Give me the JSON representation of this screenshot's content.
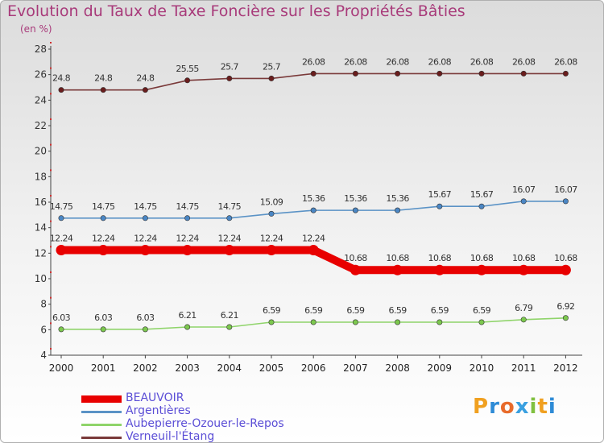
{
  "title": "Evolution du Taux de Taxe Foncière sur les Propriétés Bâties",
  "subtitle": "(en %)",
  "logo": {
    "text": "Proxiti",
    "colors": [
      "#f0a020",
      "#2e8bd6",
      "#e86b2b",
      "#3aa0e0",
      "#80c040",
      "#f0a020",
      "#2e8bd6"
    ]
  },
  "chart_data": {
    "type": "line",
    "title": "Evolution du Taux de Taxe Foncière sur les Propriétés Bâties",
    "ylabel": "(en %)",
    "xlabel": "",
    "ylim": [
      4,
      28
    ],
    "yticks": [
      4,
      6,
      8,
      10,
      12,
      14,
      16,
      18,
      20,
      22,
      24,
      26,
      28
    ],
    "grid": false,
    "legend": "bottom-left",
    "x": [
      "2000",
      "2001",
      "2002",
      "2003",
      "2004",
      "2005",
      "2006",
      "2007",
      "2008",
      "2009",
      "2010",
      "2011",
      "2012"
    ],
    "series": [
      {
        "name": "BEAUVOIR",
        "color": "#e80000",
        "bold": true,
        "values": [
          12.24,
          12.24,
          12.24,
          12.24,
          12.24,
          12.24,
          12.24,
          10.68,
          10.68,
          10.68,
          10.68,
          10.68,
          10.68
        ],
        "labels": [
          "12.24",
          "12.24",
          "12.24",
          "12.24",
          "12.24",
          "12.24",
          "12.24",
          "10.68",
          "10.68",
          "10.68",
          "10.68",
          "10.68",
          "10.68"
        ]
      },
      {
        "name": "Argentières",
        "color": "#5b93c6",
        "point": "#4a86c4",
        "values": [
          14.75,
          14.75,
          14.75,
          14.75,
          14.75,
          15.09,
          15.36,
          15.36,
          15.36,
          15.67,
          15.67,
          16.07,
          16.07
        ],
        "labels": [
          "14.75",
          "14.75",
          "14.75",
          "14.75",
          "14.75",
          "15.09",
          "15.36",
          "15.36",
          "15.36",
          "15.67",
          "15.67",
          "16.07",
          "16.07"
        ]
      },
      {
        "name": "Aubepierre-Ozouer-le-Repos",
        "color": "#8fd46a",
        "point": "#7cc84e",
        "values": [
          6.03,
          6.03,
          6.03,
          6.21,
          6.21,
          6.59,
          6.59,
          6.59,
          6.59,
          6.59,
          6.59,
          6.79,
          6.92
        ],
        "labels": [
          "6.03",
          "6.03",
          "6.03",
          "6.21",
          "6.21",
          "6.59",
          "6.59",
          "6.59",
          "6.59",
          "6.59",
          "6.59",
          "6.79",
          "6.92"
        ]
      },
      {
        "name": "Verneuil-l'Étang",
        "color": "#7a3a3a",
        "point": "#6a1d1d",
        "values": [
          24.8,
          24.8,
          24.8,
          25.55,
          25.7,
          25.7,
          26.08,
          26.08,
          26.08,
          26.08,
          26.08,
          26.08,
          26.08
        ],
        "labels": [
          "24.8",
          "24.8",
          "24.8",
          "25.55",
          "25.7",
          "25.7",
          "26.08",
          "26.08",
          "26.08",
          "26.08",
          "26.08",
          "26.08",
          "26.08"
        ]
      }
    ]
  }
}
